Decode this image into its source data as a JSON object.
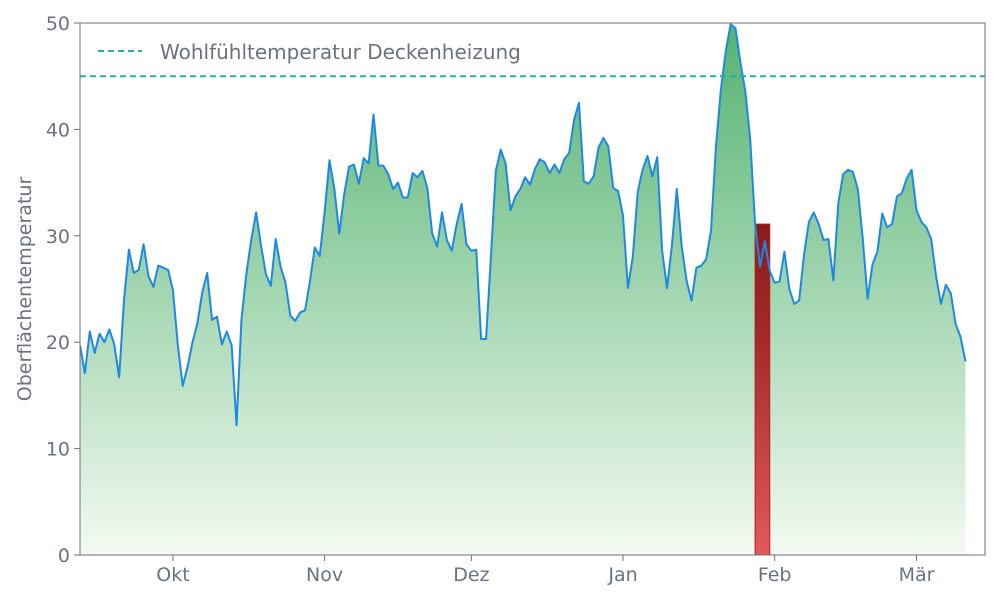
{
  "chart_data": {
    "type": "area",
    "title": "",
    "xlabel": "",
    "ylabel": "Oberflächentemperatur",
    "ylim": [
      0,
      50
    ],
    "yticks": [
      0,
      10,
      20,
      30,
      40,
      50
    ],
    "xlim": [
      "2023-09-12",
      "2024-03-15"
    ],
    "xticks": [
      {
        "label": "Okt",
        "date": "2023-10-01"
      },
      {
        "label": "Nov",
        "date": "2023-11-01"
      },
      {
        "label": "Dez",
        "date": "2023-12-01"
      },
      {
        "label": "Jan",
        "date": "2024-01-01"
      },
      {
        "label": "Feb",
        "date": "2024-02-01"
      },
      {
        "label": "Mär",
        "date": "2024-03-01"
      }
    ],
    "series": [
      {
        "start_date": "2023-09-12",
        "step_days": 1,
        "line_color": "#1e88e5",
        "fill_gradient": [
          "#4caf6a",
          "#f4faf2"
        ],
        "values": [
          19.7,
          17.1,
          21.0,
          19.0,
          20.8,
          20.0,
          21.2,
          19.8,
          16.7,
          24.0,
          28.7,
          26.5,
          26.8,
          29.2,
          26.2,
          25.2,
          27.2,
          27.0,
          26.8,
          24.9,
          19.7,
          15.9,
          17.7,
          20.0,
          21.8,
          24.7,
          26.5,
          22.1,
          22.4,
          19.8,
          21.0,
          19.7,
          12.2,
          22.1,
          26.4,
          29.6,
          32.2,
          29.1,
          26.4,
          25.3,
          29.7,
          27.1,
          25.6,
          22.5,
          22.0,
          22.8,
          23.0,
          25.7,
          28.9,
          28.1,
          32.2,
          37.1,
          34.4,
          30.2,
          33.9,
          36.5,
          36.7,
          34.9,
          37.3,
          36.8,
          41.4,
          36.6,
          36.6,
          35.8,
          34.4,
          35.0,
          33.6,
          33.6,
          35.9,
          35.5,
          36.1,
          34.5,
          30.2,
          29.0,
          32.2,
          29.6,
          28.6,
          31.1,
          33.0,
          29.2,
          28.6,
          28.7,
          20.3,
          20.3,
          28.0,
          36.1,
          38.1,
          36.8,
          32.4,
          33.7,
          34.4,
          35.5,
          34.8,
          36.3,
          37.2,
          36.9,
          35.9,
          36.7,
          35.9,
          37.2,
          37.8,
          40.9,
          42.5,
          35.1,
          34.9,
          35.6,
          38.3,
          39.2,
          38.4,
          34.5,
          34.2,
          31.9,
          25.1,
          28.0,
          34.1,
          36.2,
          37.5,
          35.6,
          37.4,
          28.6,
          25.1,
          29.1,
          34.4,
          29.0,
          25.8,
          23.9,
          27.0,
          27.2,
          27.8,
          30.5,
          38.4,
          43.7,
          47.3,
          49.9,
          49.5,
          46.3,
          43.6,
          39.1,
          31.1,
          27.1,
          29.5,
          26.7,
          25.6,
          25.7,
          28.5,
          25.0,
          23.6,
          23.9,
          28.2,
          31.3,
          32.2,
          31.1,
          29.6,
          29.7,
          25.8,
          33.0,
          35.8,
          36.2,
          36.0,
          34.4,
          29.8,
          24.1,
          27.3,
          28.5,
          32.1,
          30.8,
          31.1,
          33.7,
          34.0,
          35.4,
          36.2,
          32.4,
          31.3,
          30.8,
          29.7,
          26.2,
          23.6,
          25.4,
          24.6,
          21.7,
          20.5,
          18.2
        ]
      }
    ],
    "reference_line": {
      "label": "Wohlfühltemperatur Deckenheizung",
      "y": 45,
      "color": "#20b2aa",
      "style": "dashed"
    },
    "highlight_band": {
      "start": "2024-01-28",
      "end": "2024-01-31",
      "color": "#d9534f",
      "edge_color": "#b22222"
    },
    "legend": {
      "position": "top-left",
      "entries": [
        "Wohlfühltemperatur Deckenheizung"
      ]
    },
    "grid": false
  }
}
